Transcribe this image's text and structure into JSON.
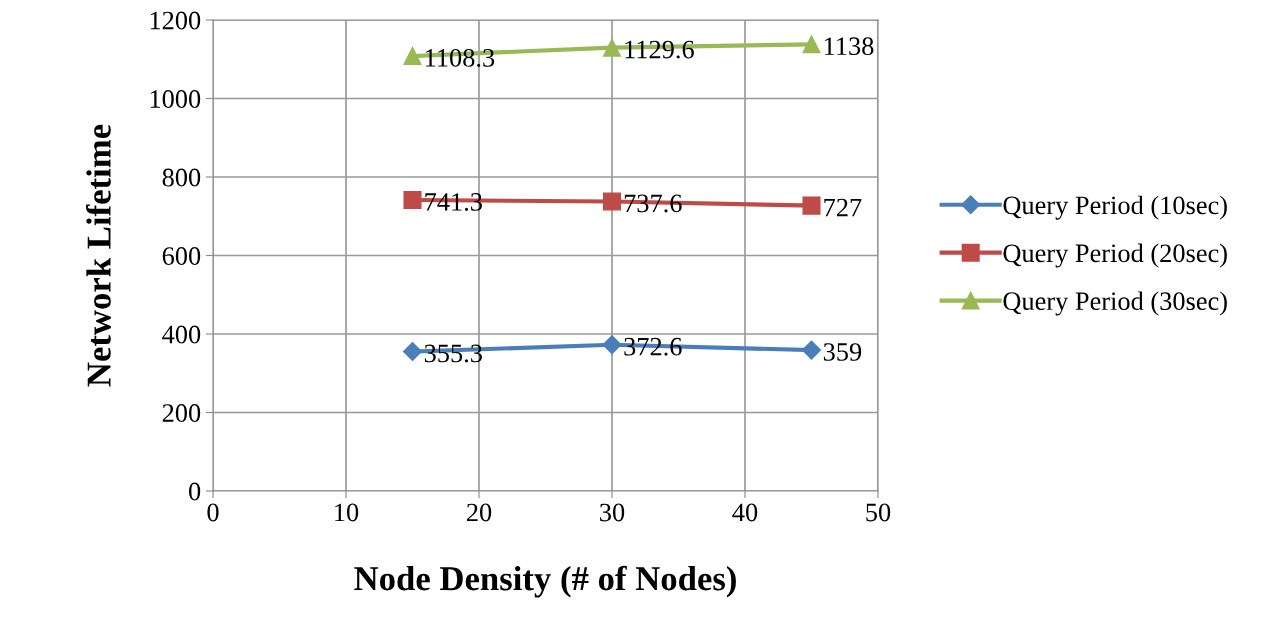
{
  "chart_data": {
    "type": "line",
    "xlabel": "Node Density (# of Nodes)",
    "ylabel": "Network Lifetime",
    "x": [
      15,
      30,
      45
    ],
    "series": [
      {
        "name": "Query Period (10sec)",
        "color": "#4a7ebb",
        "marker": "diamond",
        "values": [
          355.3,
          372.6,
          359
        ]
      },
      {
        "name": "Query Period (20sec)",
        "color": "#be4b48",
        "marker": "square",
        "values": [
          741.3,
          737.6,
          727
        ]
      },
      {
        "name": "Query Period (30sec)",
        "color": "#98b954",
        "marker": "triangle",
        "values": [
          1108.3,
          1129.6,
          1138
        ]
      }
    ],
    "xlim": [
      0,
      50
    ],
    "xticks": [
      0,
      10,
      20,
      30,
      40,
      50
    ],
    "ylim": [
      0,
      1200
    ],
    "yticks": [
      0,
      200,
      400,
      600,
      800,
      1000,
      1200
    ],
    "grid": true,
    "legend": "right",
    "data_labels": true,
    "line_style": "solid"
  }
}
